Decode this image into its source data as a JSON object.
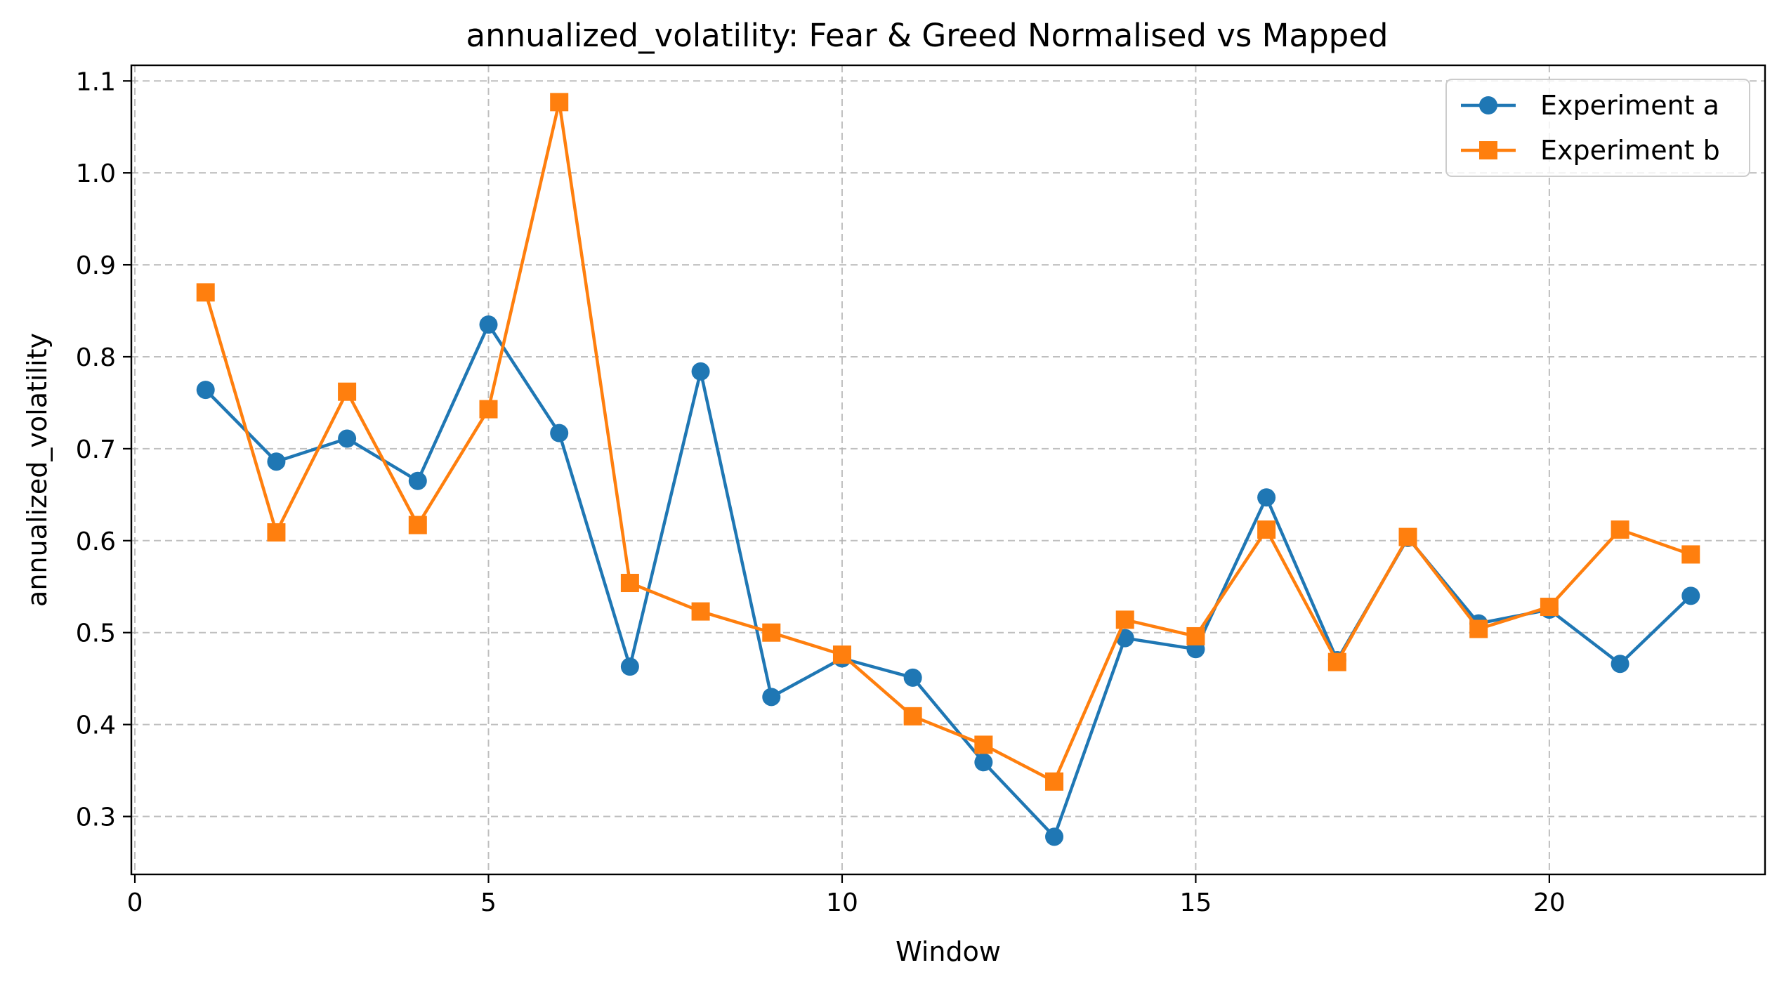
{
  "chart_data": {
    "type": "line",
    "title": "annualized_volatility: Fear & Greed Normalised vs Mapped",
    "xlabel": "Window",
    "ylabel": "annualized_volatility",
    "xlim": [
      -0.05,
      23.05
    ],
    "ylim": [
      0.237,
      1.117
    ],
    "x_ticks": [
      0,
      5,
      10,
      15,
      20
    ],
    "x_tick_labels": [
      "0",
      "5",
      "10",
      "15",
      "20"
    ],
    "y_ticks": [
      0.3,
      0.4,
      0.5,
      0.6,
      0.7,
      0.8,
      0.9,
      1.0,
      1.1
    ],
    "y_tick_labels": [
      "0.3",
      "0.4",
      "0.5",
      "0.6",
      "0.7",
      "0.8",
      "0.9",
      "1.0",
      "1.1"
    ],
    "grid": true,
    "legend_position": "top-right",
    "x": [
      1,
      2,
      3,
      4,
      5,
      6,
      7,
      8,
      9,
      10,
      11,
      12,
      13,
      14,
      15,
      16,
      17,
      18,
      19,
      20,
      21,
      22
    ],
    "series": [
      {
        "name": "Experiment a",
        "color": "#1f77b4",
        "marker": "circle",
        "values": [
          0.764,
          0.686,
          0.711,
          0.665,
          0.835,
          0.717,
          0.463,
          0.784,
          0.43,
          0.472,
          0.451,
          0.359,
          0.278,
          0.494,
          0.482,
          0.647,
          0.47,
          0.603,
          0.51,
          0.525,
          0.466,
          0.54
        ]
      },
      {
        "name": "Experiment b",
        "color": "#ff7f0e",
        "marker": "square",
        "values": [
          0.87,
          0.609,
          0.762,
          0.617,
          0.743,
          1.077,
          0.554,
          0.523,
          0.5,
          0.476,
          0.409,
          0.378,
          0.338,
          0.514,
          0.496,
          0.612,
          0.468,
          0.604,
          0.504,
          0.528,
          0.612,
          0.585
        ]
      }
    ]
  }
}
